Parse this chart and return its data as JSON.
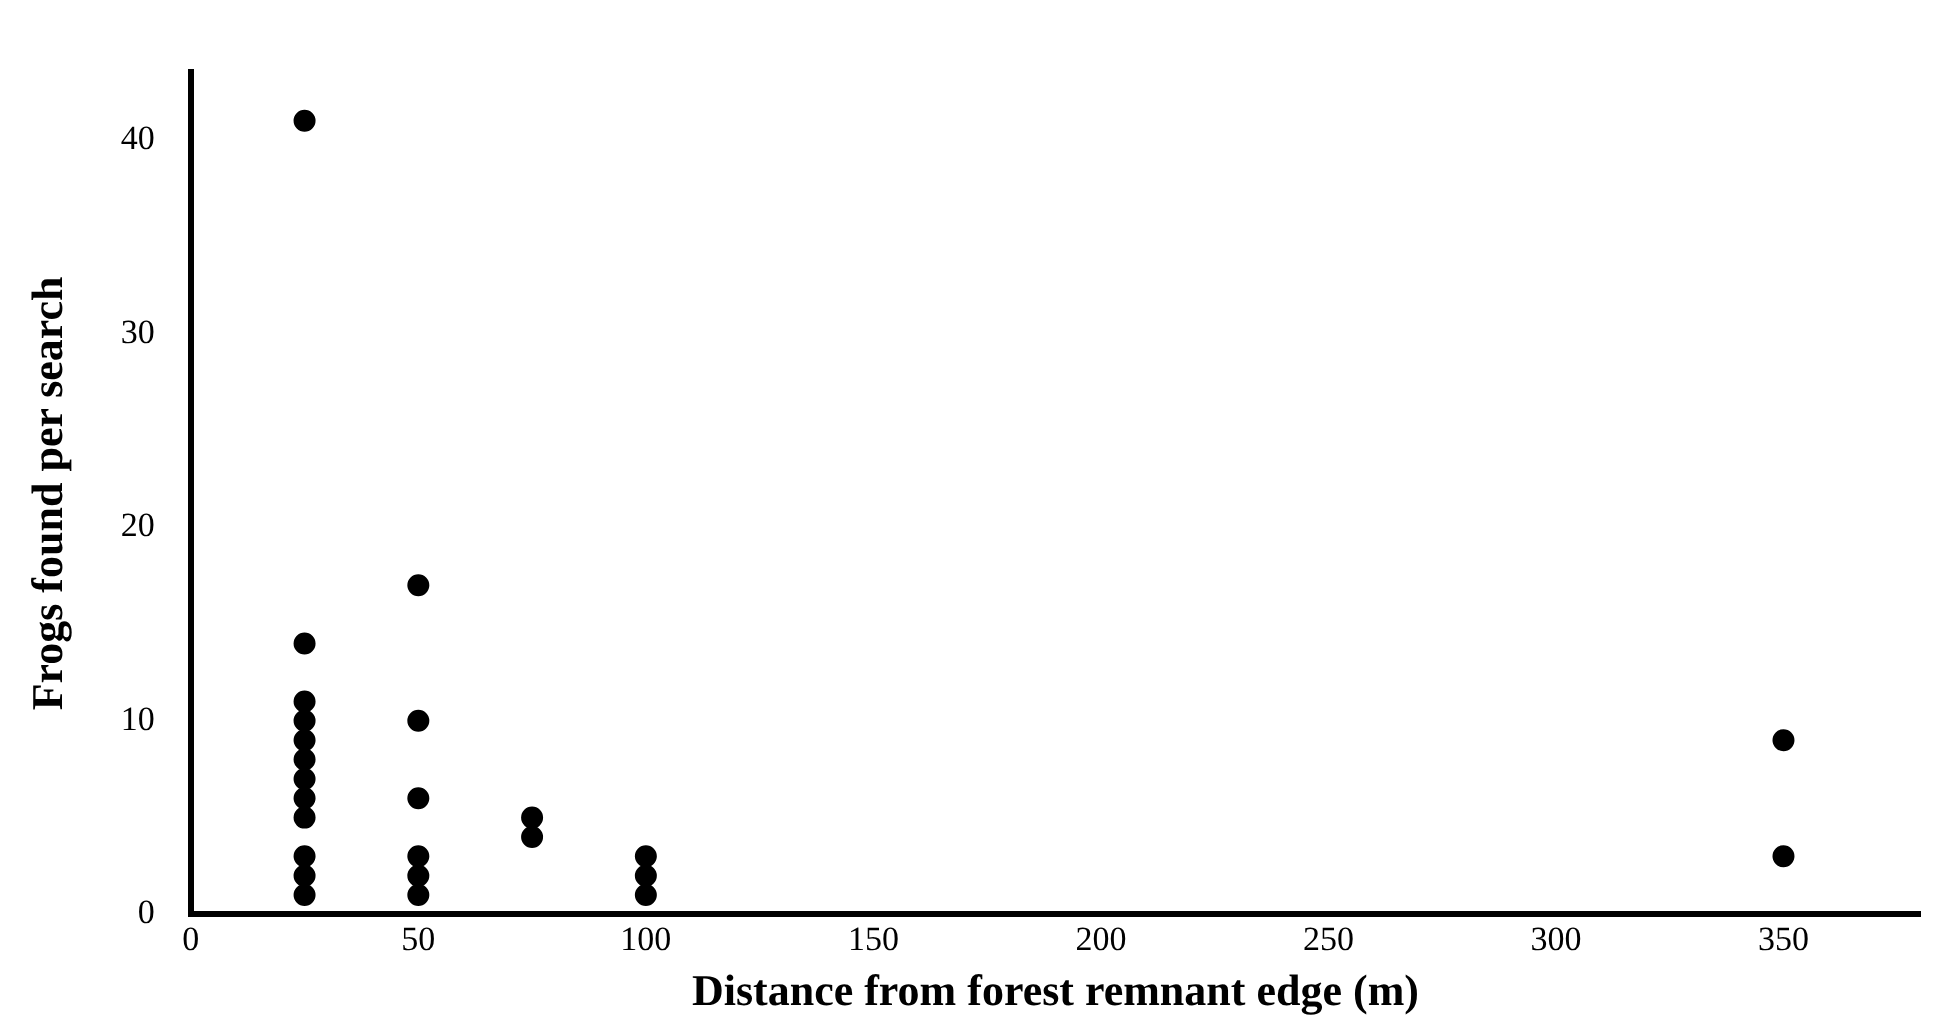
{
  "chart_data": {
    "type": "scatter",
    "xlabel": "Distance from forest remnant edge (m)",
    "ylabel": "Frogs found per search",
    "x": [
      25,
      25,
      25,
      25,
      25,
      25,
      25,
      25,
      25,
      25,
      25,
      25,
      50,
      50,
      50,
      50,
      50,
      50,
      75,
      75,
      100,
      100,
      100,
      350,
      350
    ],
    "series": [
      {
        "color": "#000000",
        "values": [
          1,
          2,
          3,
          5,
          6,
          7,
          8,
          9,
          10,
          11,
          14,
          41,
          1,
          2,
          3,
          6,
          10,
          17,
          4,
          5,
          1,
          2,
          3,
          3,
          9
        ]
      }
    ],
    "xlim": [
      0,
      380
    ],
    "xticks": [
      0,
      50,
      100,
      150,
      200,
      250,
      300,
      350
    ],
    "ylim": [
      0,
      43.5
    ],
    "yticks": [
      0,
      10,
      20,
      30,
      40
    ],
    "grid": false,
    "legend": false,
    "marker": "circle"
  }
}
